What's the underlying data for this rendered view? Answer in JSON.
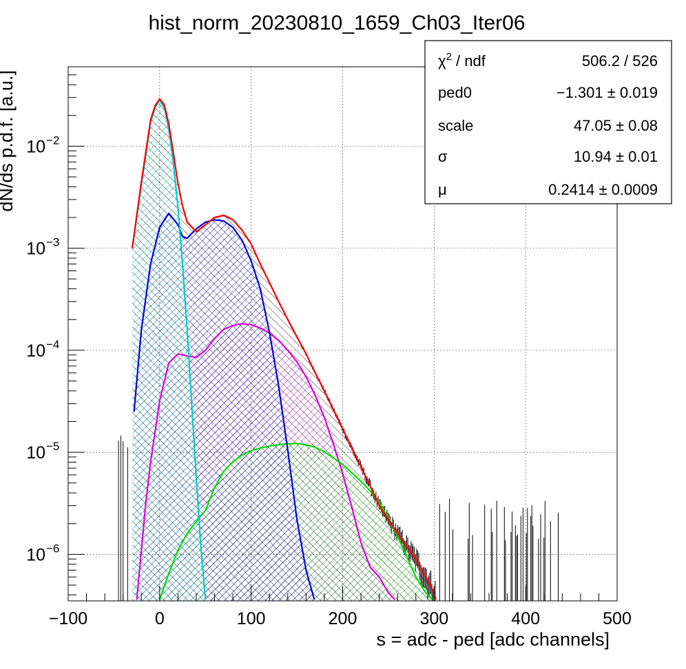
{
  "chart_data": {
    "type": "line",
    "title": "hist_norm_20230810_1659_Ch03_Iter06",
    "xlabel": "s = adc - ped [adc channels]",
    "ylabel": "dN/ds p.d.f. [a.u.]",
    "xlim": [
      -100,
      500
    ],
    "ylim": [
      3.5e-07,
      0.06
    ],
    "y_scale": "log",
    "grid": true,
    "x_ticks": [
      "−100",
      "0",
      "100",
      "200",
      "300",
      "400",
      "500"
    ],
    "y_ticks": [
      {
        "value": 0.01,
        "mantissa": "10",
        "exp": "−2"
      },
      {
        "value": 0.001,
        "mantissa": "10",
        "exp": "−3"
      },
      {
        "value": 0.0001,
        "mantissa": "10",
        "exp": "−4"
      },
      {
        "value": 1e-05,
        "mantissa": "10",
        "exp": "−5"
      },
      {
        "value": 1e-06,
        "mantissa": "10",
        "exp": "−6"
      }
    ],
    "stats_box": {
      "rows": [
        {
          "label": "χ",
          "sup": "2",
          "label_tail": " / ndf",
          "value": "506.2 / 526"
        },
        {
          "label": "ped0",
          "value": "−1.301 ± 0.019"
        },
        {
          "label": "scale",
          "value": "47.05 ± 0.08"
        },
        {
          "label": "σ",
          "value": "10.94 ± 0.01"
        },
        {
          "label": "μ",
          "value": "0.2414 ± 0.0009"
        }
      ],
      "placement": "top-right"
    },
    "series": [
      {
        "color": "#ff0000",
        "x": [
          -30,
          -20,
          -10,
          -5,
          0,
          5,
          10,
          15,
          20,
          25,
          30,
          40,
          50,
          60,
          70,
          80,
          90,
          100,
          110,
          120,
          130,
          140,
          150,
          160,
          170,
          180,
          190,
          200,
          210,
          220,
          230,
          240,
          250,
          260,
          270,
          280,
          290,
          300,
          302
        ],
        "y": [
          0.001,
          0.0045,
          0.018,
          0.025,
          0.029,
          0.0255,
          0.0165,
          0.0085,
          0.0043,
          0.0026,
          0.0018,
          0.00145,
          0.0017,
          0.002,
          0.0021,
          0.0019,
          0.0015,
          0.0011,
          0.0007,
          0.00046,
          0.0003,
          0.0002,
          0.000135,
          9.25e-05,
          6e-05,
          4e-05,
          2.6e-05,
          1.7e-05,
          1.1e-05,
          7.2e-06,
          4.7e-06,
          3e-06,
          2.2e-06,
          1.6e-06,
          1.2e-06,
          9e-07,
          6.2e-07,
          4.2e-07,
          3.6e-07
        ]
      },
      {
        "color": "#00cccc",
        "x": [
          -30,
          -20,
          -10,
          -5,
          0,
          5,
          10,
          15,
          20,
          25,
          30,
          35,
          40,
          45,
          50
        ],
        "y": [
          0.001,
          0.0042,
          0.017,
          0.024,
          0.028,
          0.024,
          0.0145,
          0.0068,
          0.0025,
          0.0007,
          0.00016,
          3e-05,
          5.5e-06,
          1.2e-06,
          3.6e-07
        ]
      },
      {
        "color": "#0000dd",
        "x": [
          -28,
          -20,
          -10,
          0,
          10,
          20,
          25,
          30,
          40,
          50,
          60,
          70,
          80,
          90,
          100,
          110,
          120,
          130,
          140,
          150,
          160,
          169
        ],
        "y": [
          2.5e-05,
          0.00016,
          0.0007,
          0.0016,
          0.0022,
          0.0017,
          0.0013,
          0.00125,
          0.00155,
          0.0018,
          0.0019,
          0.00185,
          0.0016,
          0.0012,
          0.00075,
          0.0004,
          0.00015,
          4.5e-05,
          1.05e-05,
          2.2e-06,
          7e-07,
          3.6e-07
        ]
      },
      {
        "color": "#dd00dd",
        "x": [
          -25,
          -20,
          -15,
          -10,
          0,
          10,
          20,
          30,
          40,
          50,
          60,
          70,
          80,
          90,
          100,
          110,
          120,
          130,
          140,
          150,
          160,
          170,
          180,
          190,
          200,
          210,
          220,
          230,
          240,
          250,
          257
        ],
        "y": [
          3.6e-07,
          1.1e-06,
          3.3e-06,
          8e-06,
          3.2e-05,
          7.5e-05,
          9.2e-05,
          8.8e-05,
          8.5e-05,
          0.0001,
          0.00013,
          0.00016,
          0.000175,
          0.000182,
          0.000178,
          0.000165,
          0.000148,
          0.000125,
          0.0001,
          7.7e-05,
          5.5e-05,
          3.6e-05,
          2.2e-05,
          1.2e-05,
          6.2e-06,
          2.9e-06,
          1.3e-06,
          7.5e-07,
          6e-07,
          4.2e-07,
          3.6e-07
        ]
      },
      {
        "color": "#00dd00",
        "x": [
          0,
          10,
          20,
          30,
          40,
          50,
          60,
          70,
          80,
          90,
          100,
          110,
          120,
          130,
          140,
          150,
          160,
          170,
          180,
          190,
          200,
          210,
          220,
          230,
          240,
          250,
          260,
          270,
          280,
          290,
          298
        ],
        "y": [
          3.6e-07,
          6.5e-07,
          1.1e-06,
          1.6e-06,
          2.1e-06,
          2.7e-06,
          4.5e-06,
          6.5e-06,
          8.1e-06,
          9.4e-06,
          1.04e-05,
          1.1e-05,
          1.15e-05,
          1.19e-05,
          1.21e-05,
          1.22e-05,
          1.18e-05,
          1.12e-05,
          1.01e-05,
          8.8e-06,
          7.6e-06,
          6.3e-06,
          5.2e-06,
          4.2e-06,
          3.2e-06,
          2.3e-06,
          1.5e-06,
          9.5e-07,
          6e-07,
          4.3e-07,
          3.6e-07
        ]
      }
    ]
  }
}
